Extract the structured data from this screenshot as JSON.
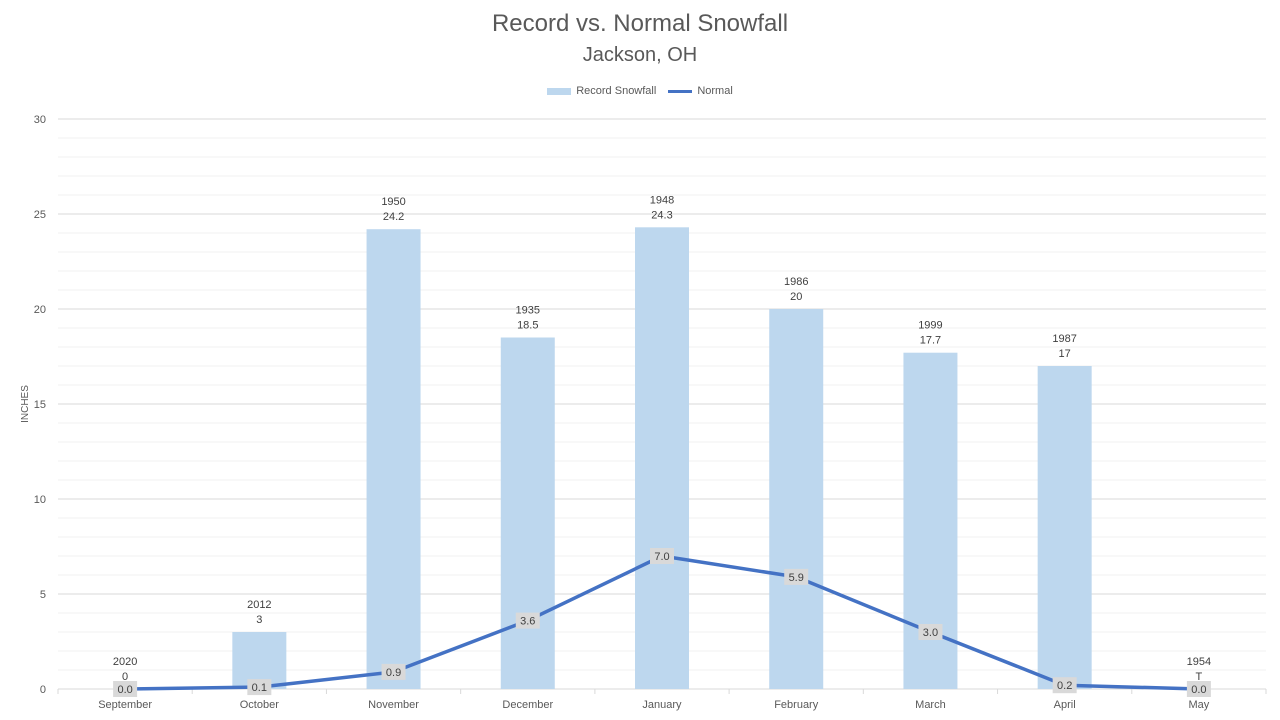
{
  "chart_data": {
    "type": "bar",
    "title": "Record vs. Normal Snowfall",
    "subtitle": "Jackson, OH",
    "ylabel": "INCHES",
    "xlabel": "",
    "ylim": [
      0,
      30
    ],
    "yticks": [
      0,
      5,
      10,
      15,
      20,
      25,
      30
    ],
    "grid": true,
    "legend_placement": "top",
    "categories": [
      "September",
      "October",
      "November",
      "December",
      "January",
      "February",
      "March",
      "April",
      "May"
    ],
    "series": [
      {
        "name": "Record Snowfall",
        "kind": "bar",
        "color": "#bdd7ee",
        "values": [
          0,
          3,
          24.2,
          18.5,
          24.3,
          20,
          17.7,
          17,
          0
        ],
        "value_labels": [
          "0",
          "3",
          "24.2",
          "18.5",
          "24.3",
          "20",
          "17.7",
          "17",
          "T"
        ],
        "years": [
          "2020",
          "2012",
          "1950",
          "1935",
          "1948",
          "1986",
          "1999",
          "1987",
          "1954"
        ]
      },
      {
        "name": "Normal",
        "kind": "line",
        "color": "#4472c4",
        "values": [
          0.0,
          0.1,
          0.9,
          3.6,
          7.0,
          5.9,
          3.0,
          0.2,
          0.0
        ],
        "value_labels": [
          "0.0",
          "0.1",
          "0.9",
          "3.6",
          "7.0",
          "5.9",
          "3.0",
          "0.2",
          "0.0"
        ]
      }
    ]
  }
}
